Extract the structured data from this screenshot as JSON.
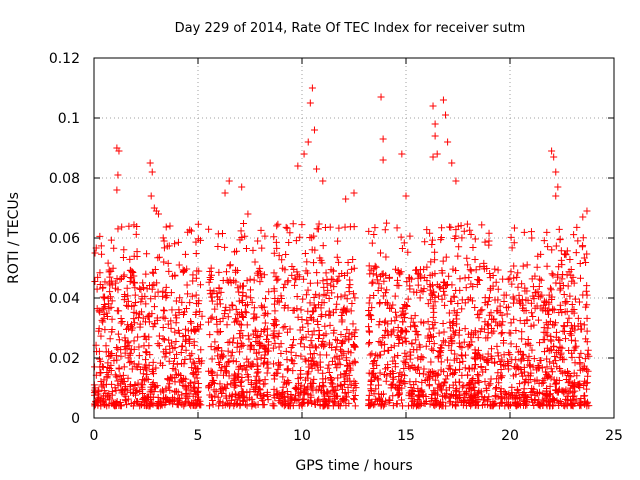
{
  "chart_data": {
    "type": "scatter",
    "title": "Day 229 of 2014, Rate Of TEC Index for receiver sutm",
    "xlabel": "GPS time / hours",
    "ylabel": "ROTI / TECUs",
    "xlim": [
      0,
      25
    ],
    "ylim": [
      0,
      0.12
    ],
    "xticks": [
      0,
      5,
      10,
      15,
      20,
      25
    ],
    "xtick_labels": [
      "0",
      "5",
      "10",
      "15",
      "20",
      "25"
    ],
    "yticks": [
      0,
      0.02,
      0.04,
      0.06,
      0.08,
      0.1,
      0.12
    ],
    "ytick_labels": [
      "0",
      "0.02",
      "0.04",
      "0.06",
      "0.08",
      "0.1",
      "0.12"
    ],
    "grid": true,
    "marker": "+",
    "color": "#ff0000",
    "series": [
      {
        "name": "ROTI",
        "data_segments": [
          [
            0.0,
            5.2
          ],
          [
            5.5,
            8.4
          ],
          [
            8.6,
            12.6
          ],
          [
            13.2,
            23.8
          ]
        ],
        "typical_range": [
          0.004,
          0.05
        ],
        "points": [
          [
            1.1,
            0.09
          ],
          [
            1.2,
            0.089
          ],
          [
            1.15,
            0.081
          ],
          [
            1.1,
            0.076
          ],
          [
            0.05,
            0.055
          ],
          [
            2.7,
            0.085
          ],
          [
            2.8,
            0.082
          ],
          [
            2.75,
            0.074
          ],
          [
            2.9,
            0.07
          ],
          [
            3.0,
            0.069
          ],
          [
            3.1,
            0.068
          ],
          [
            6.5,
            0.079
          ],
          [
            6.3,
            0.075
          ],
          [
            7.1,
            0.077
          ],
          [
            7.4,
            0.068
          ],
          [
            9.8,
            0.084
          ],
          [
            10.1,
            0.088
          ],
          [
            10.3,
            0.092
          ],
          [
            10.5,
            0.11
          ],
          [
            10.4,
            0.105
          ],
          [
            10.6,
            0.096
          ],
          [
            10.7,
            0.083
          ],
          [
            11.0,
            0.079
          ],
          [
            12.5,
            0.075
          ],
          [
            12.1,
            0.073
          ],
          [
            13.8,
            0.107
          ],
          [
            13.9,
            0.093
          ],
          [
            13.9,
            0.086
          ],
          [
            14.8,
            0.088
          ],
          [
            15.0,
            0.074
          ],
          [
            16.3,
            0.104
          ],
          [
            16.4,
            0.098
          ],
          [
            16.4,
            0.094
          ],
          [
            16.5,
            0.088
          ],
          [
            16.3,
            0.087
          ],
          [
            16.8,
            0.106
          ],
          [
            16.9,
            0.101
          ],
          [
            17.0,
            0.092
          ],
          [
            17.2,
            0.085
          ],
          [
            17.4,
            0.079
          ],
          [
            22.0,
            0.089
          ],
          [
            22.1,
            0.087
          ],
          [
            22.2,
            0.082
          ],
          [
            22.3,
            0.077
          ],
          [
            22.2,
            0.074
          ],
          [
            23.7,
            0.069
          ],
          [
            23.5,
            0.067
          ]
        ]
      }
    ]
  }
}
